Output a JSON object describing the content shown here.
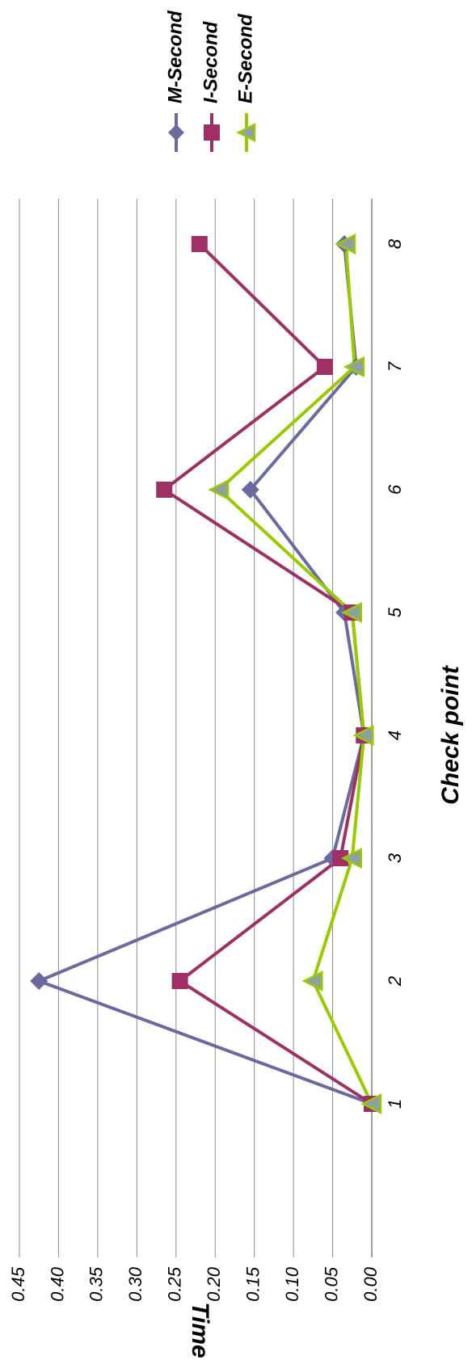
{
  "chart_data": {
    "type": "line",
    "orientation": "rotated 90 degrees clockwise",
    "x": [
      "1",
      "2",
      "3",
      "4",
      "5",
      "6",
      "7",
      "8"
    ],
    "xlabel": "Check point",
    "ylabel": "Time",
    "ylim": [
      0,
      0.45
    ],
    "yticks": [
      "0.00",
      "0.05",
      "0.10",
      "0.15",
      "0.20",
      "0.25",
      "0.30",
      "0.35",
      "0.40",
      "0.45"
    ],
    "grid": true,
    "legend_position": "right",
    "series": [
      {
        "name": "M-Second",
        "color": "#6a6aa0",
        "marker": "diamond",
        "values": [
          0.0,
          0.425,
          0.05,
          0.01,
          0.035,
          0.155,
          0.02,
          0.035
        ]
      },
      {
        "name": "I-Second",
        "color": "#9e3065",
        "marker": "square",
        "values": [
          0.0,
          0.245,
          0.04,
          0.01,
          0.025,
          0.265,
          0.06,
          0.22
        ]
      },
      {
        "name": "E-Second",
        "color": "#99cc00",
        "marker": "triangle",
        "values": [
          0.0,
          0.075,
          0.025,
          0.01,
          0.025,
          0.195,
          0.022,
          0.033
        ]
      }
    ]
  }
}
